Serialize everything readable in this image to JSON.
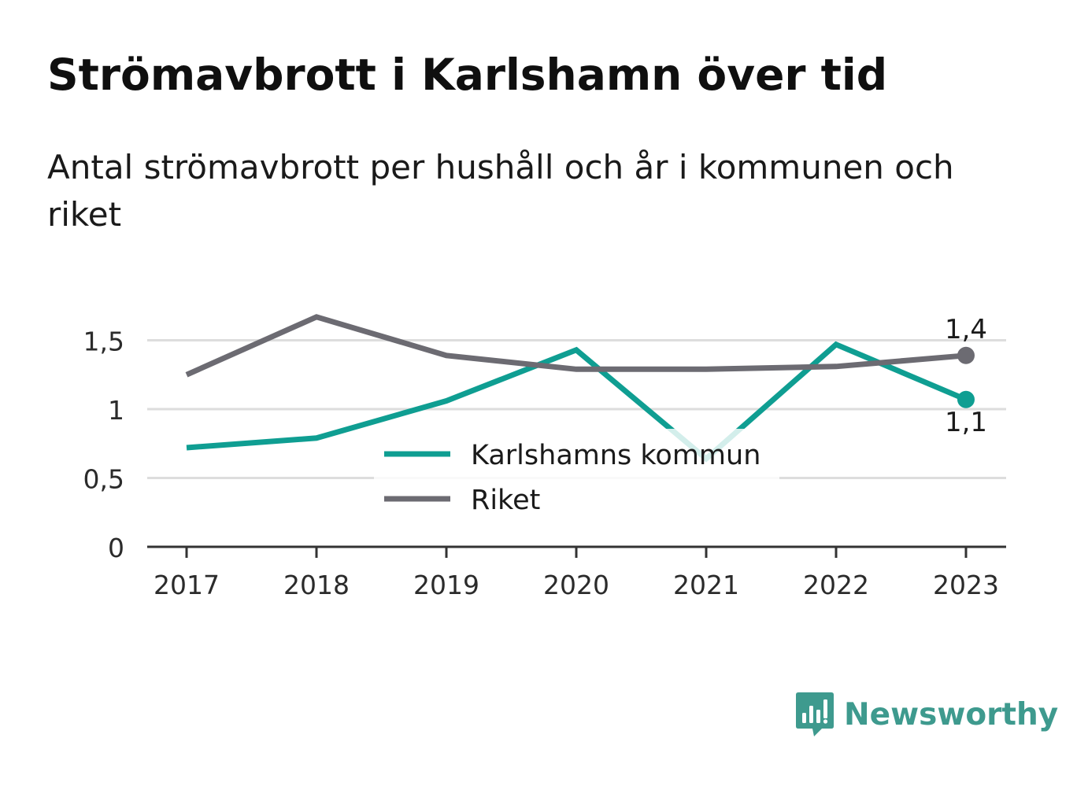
{
  "header": {
    "title": "Strömavbrott i Karlshamn över tid",
    "subtitle": "Antal strömavbrott per hushåll och år i kommunen och riket"
  },
  "brand": {
    "name": "Newsworthy",
    "icon": "newsworthy-logo-icon",
    "color": "#3e9a8e"
  },
  "chart_data": {
    "type": "line",
    "title": "Strömavbrott i Karlshamn över tid",
    "subtitle": "Antal strömavbrott per hushåll och år i kommunen och riket",
    "xlabel": "",
    "ylabel": "",
    "x": [
      "2017",
      "2018",
      "2019",
      "2020",
      "2021",
      "2022",
      "2023"
    ],
    "ylim": [
      0,
      1.75
    ],
    "yticks": [
      0,
      0.5,
      1,
      1.5
    ],
    "ytick_labels": [
      "0",
      "0,5",
      "1",
      "1,5"
    ],
    "grid": true,
    "legend_position": "center",
    "series": [
      {
        "name": "Karlshamns kommun",
        "color": "#0f9e92",
        "values": [
          0.72,
          0.79,
          1.06,
          1.43,
          0.64,
          1.47,
          1.07
        ],
        "end_label": "1,1"
      },
      {
        "name": "Riket",
        "color": "#6c6b72",
        "values": [
          1.25,
          1.67,
          1.39,
          1.29,
          1.29,
          1.31,
          1.39
        ],
        "end_label": "1,4"
      }
    ]
  }
}
